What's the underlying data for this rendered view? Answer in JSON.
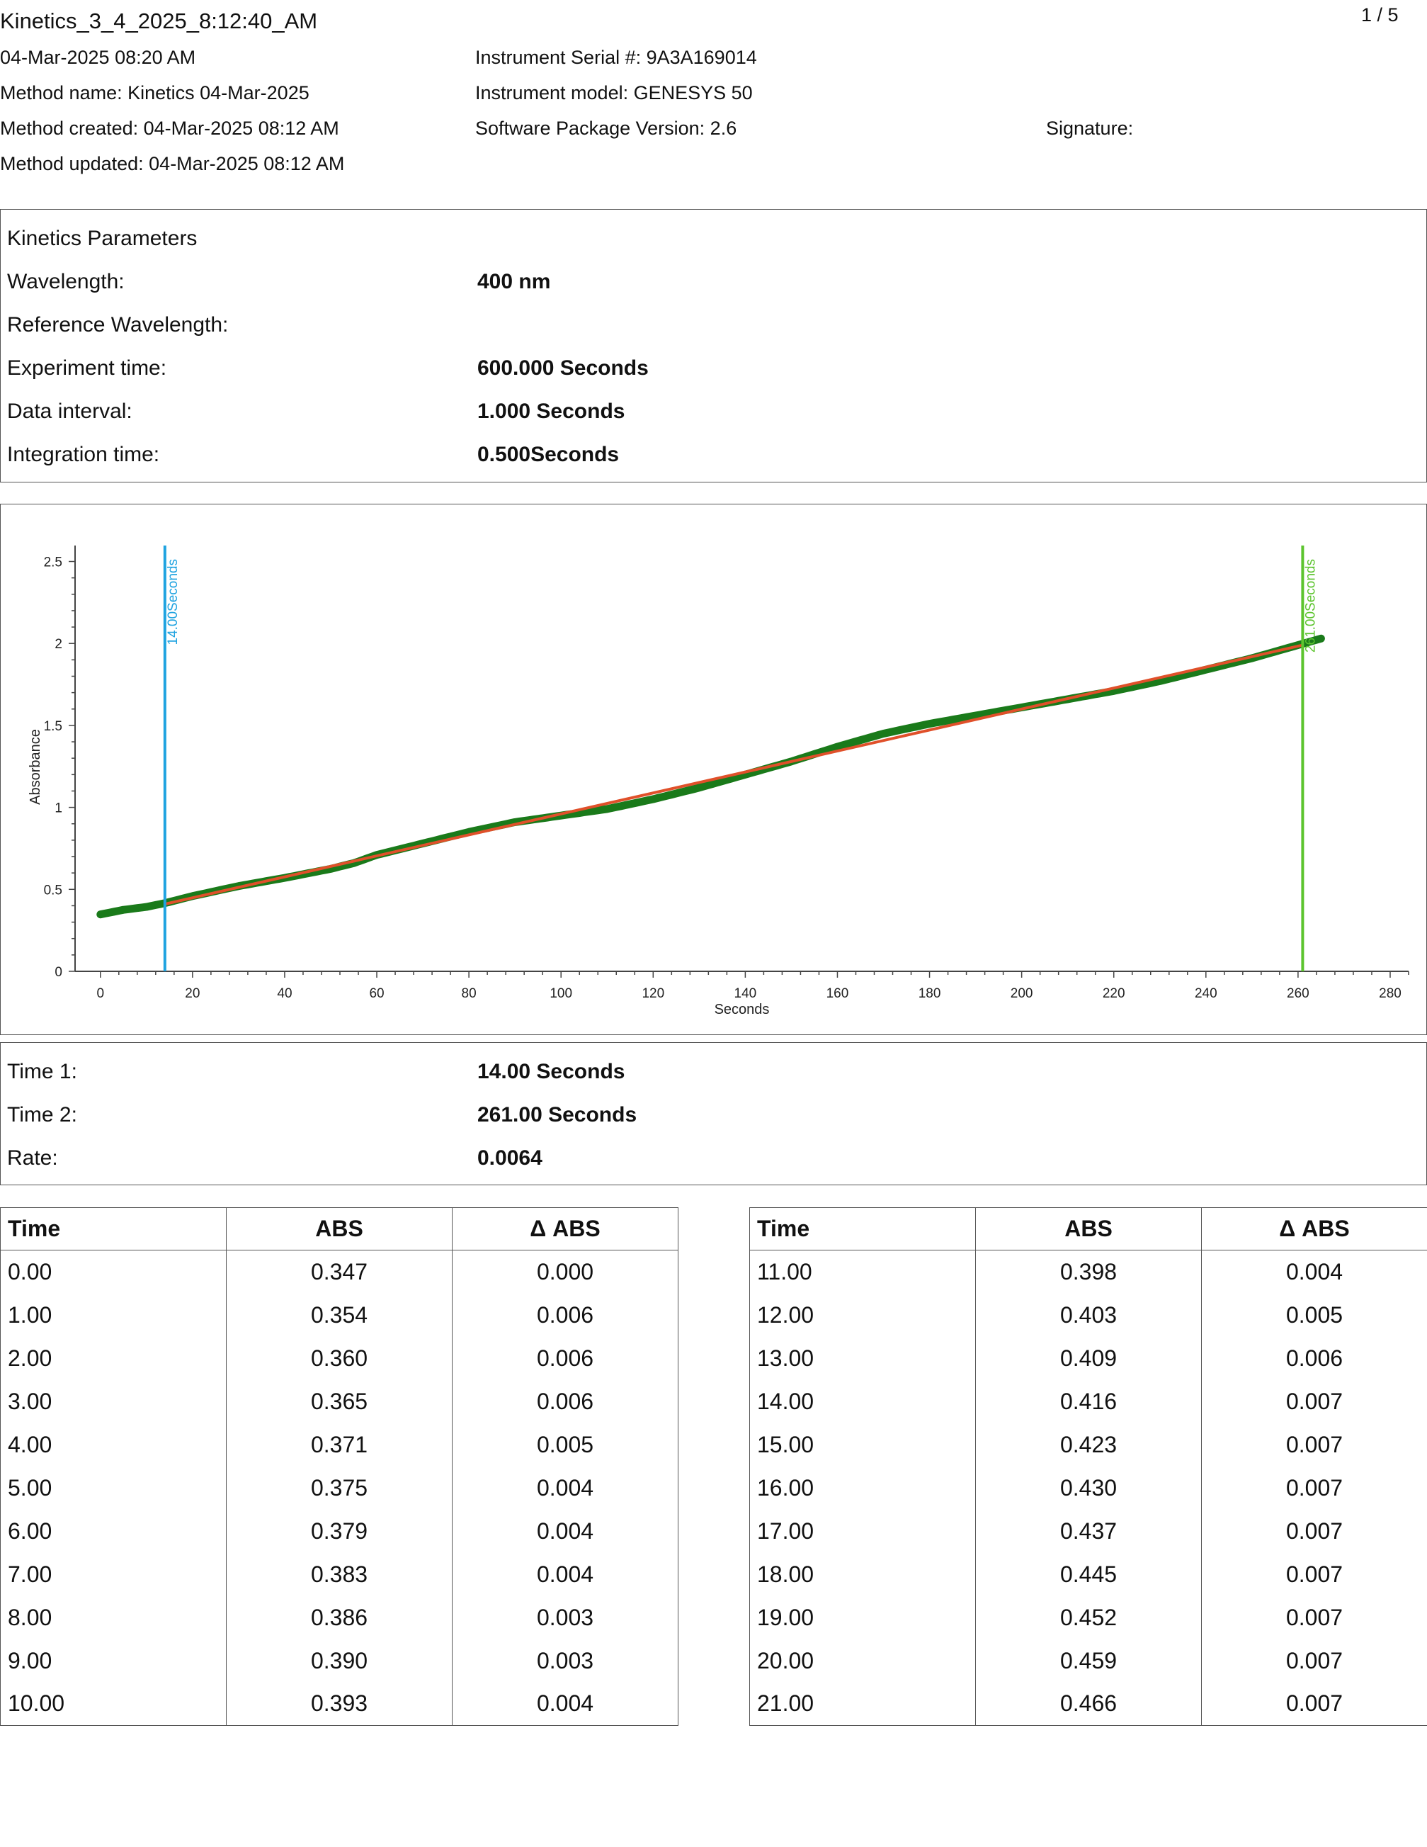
{
  "header": {
    "title": "Kinetics_3_4_2025_8:12:40_AM",
    "page": "1 / 5",
    "date": "04-Mar-2025 08:20 AM",
    "method_name": "Method name: Kinetics 04-Mar-2025",
    "method_created": "Method created: 04-Mar-2025 08:12 AM",
    "method_updated": "Method updated: 04-Mar-2025 08:12 AM",
    "serial": "Instrument Serial #: 9A3A169014",
    "model": "Instrument model: GENESYS 50",
    "software": "Software Package Version: 2.6",
    "signature": "Signature:"
  },
  "params": {
    "heading": "Kinetics Parameters",
    "rows": [
      {
        "label": "Wavelength:",
        "value": "400 nm"
      },
      {
        "label": "Reference Wavelength:",
        "value": ""
      },
      {
        "label": "Experiment time:",
        "value": "600.000 Seconds"
      },
      {
        "label": "Data interval:",
        "value": "1.000 Seconds"
      },
      {
        "label": "Integration time:",
        "value": "0.500Seconds"
      }
    ]
  },
  "chart_data": {
    "type": "scatter",
    "xlabel": "Seconds",
    "ylabel": "Absorbance",
    "xlim": [
      -5.5,
      284
    ],
    "ylim": [
      0,
      2.58
    ],
    "xticks": [
      0,
      20,
      40,
      60,
      80,
      100,
      120,
      140,
      160,
      180,
      200,
      220,
      240,
      260,
      280
    ],
    "yticks": [
      0,
      0.5,
      1,
      1.5,
      2,
      2.5
    ],
    "ytick_labels": [
      "0",
      "0.5",
      "1",
      "1.5",
      "2",
      "2.5"
    ],
    "series": [
      {
        "kind": "points",
        "color": "#1a7a1a",
        "x": [
          0,
          5,
          10,
          14,
          20,
          30,
          40,
          50,
          55,
          60,
          70,
          80,
          90,
          100,
          110,
          120,
          130,
          140,
          150,
          160,
          170,
          180,
          190,
          200,
          210,
          220,
          230,
          240,
          250,
          260,
          265
        ],
        "y": [
          0.347,
          0.375,
          0.393,
          0.416,
          0.459,
          0.52,
          0.57,
          0.625,
          0.66,
          0.71,
          0.78,
          0.85,
          0.91,
          0.95,
          0.99,
          1.05,
          1.12,
          1.2,
          1.28,
          1.37,
          1.45,
          1.51,
          1.56,
          1.61,
          1.66,
          1.71,
          1.77,
          1.84,
          1.91,
          1.99,
          2.03
        ]
      },
      {
        "kind": "fit",
        "color": "#e0502a",
        "x": [
          14,
          261
        ],
        "y": [
          0.41,
          1.99
        ]
      }
    ],
    "markers": [
      {
        "x": 14,
        "label": "14.00Seconds",
        "color": "#1fa3e0"
      },
      {
        "x": 261,
        "label": "261.00Seconds",
        "color": "#5cc42e"
      }
    ]
  },
  "results": {
    "rows": [
      {
        "label": "Time 1:",
        "value": "14.00 Seconds"
      },
      {
        "label": "Time 2:",
        "value": "261.00 Seconds"
      },
      {
        "label": "Rate:",
        "value": "0.0064"
      }
    ]
  },
  "table": {
    "headers": [
      "Time",
      "ABS",
      "Δ ABS"
    ],
    "left": [
      [
        "0.00",
        "0.347",
        "0.000"
      ],
      [
        "1.00",
        "0.354",
        "0.006"
      ],
      [
        "2.00",
        "0.360",
        "0.006"
      ],
      [
        "3.00",
        "0.365",
        "0.006"
      ],
      [
        "4.00",
        "0.371",
        "0.005"
      ],
      [
        "5.00",
        "0.375",
        "0.004"
      ],
      [
        "6.00",
        "0.379",
        "0.004"
      ],
      [
        "7.00",
        "0.383",
        "0.004"
      ],
      [
        "8.00",
        "0.386",
        "0.003"
      ],
      [
        "9.00",
        "0.390",
        "0.003"
      ],
      [
        "10.00",
        "0.393",
        "0.004"
      ]
    ],
    "right": [
      [
        "11.00",
        "0.398",
        "0.004"
      ],
      [
        "12.00",
        "0.403",
        "0.005"
      ],
      [
        "13.00",
        "0.409",
        "0.006"
      ],
      [
        "14.00",
        "0.416",
        "0.007"
      ],
      [
        "15.00",
        "0.423",
        "0.007"
      ],
      [
        "16.00",
        "0.430",
        "0.007"
      ],
      [
        "17.00",
        "0.437",
        "0.007"
      ],
      [
        "18.00",
        "0.445",
        "0.007"
      ],
      [
        "19.00",
        "0.452",
        "0.007"
      ],
      [
        "20.00",
        "0.459",
        "0.007"
      ],
      [
        "21.00",
        "0.466",
        "0.007"
      ]
    ]
  }
}
